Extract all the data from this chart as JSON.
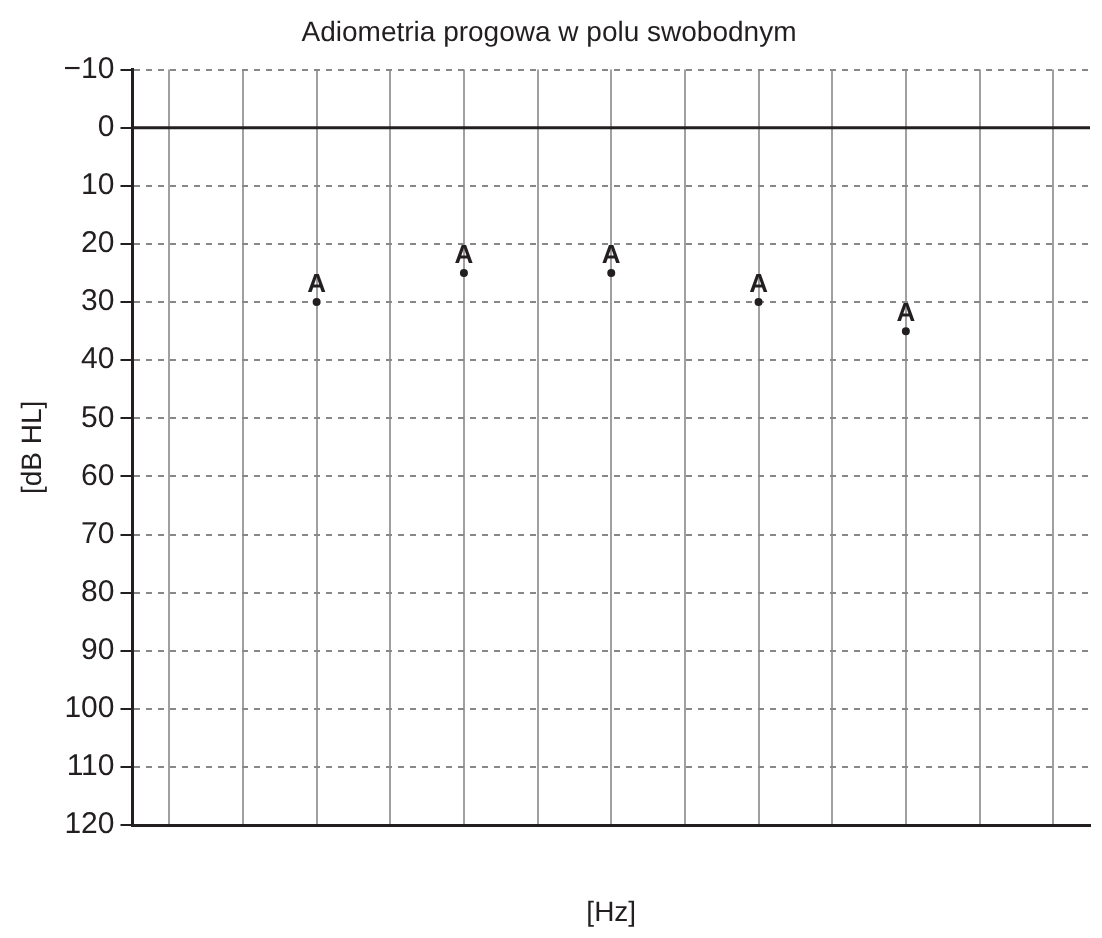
{
  "chart_data": {
    "type": "scatter",
    "title": "Adiometria progowa w polu swobodnym",
    "xlabel": "[Hz]",
    "ylabel": "[dB HL]",
    "categories": [
      null,
      null,
      null,
      null,
      null,
      null,
      null,
      null,
      null,
      null,
      null,
      null,
      null
    ],
    "series": [
      {
        "color": "#231f20",
        "values": [
          null,
          null,
          30,
          null,
          25,
          null,
          25,
          null,
          30,
          null,
          35,
          null,
          null
        ],
        "value_labels": [
          null,
          null,
          "A",
          null,
          "A",
          null,
          "A",
          null,
          "A",
          null,
          "A",
          null,
          null
        ]
      }
    ],
    "ylim": [
      120,
      -10
    ],
    "yticks": [
      {
        "value": -10,
        "label": "−10"
      },
      0,
      10,
      20,
      30,
      40,
      50,
      60,
      70,
      80,
      90,
      100,
      110,
      120
    ],
    "grid": true,
    "legend": false,
    "ref_lines": [
      {
        "axis": "y",
        "value": 0,
        "color": "#231f20"
      }
    ]
  }
}
